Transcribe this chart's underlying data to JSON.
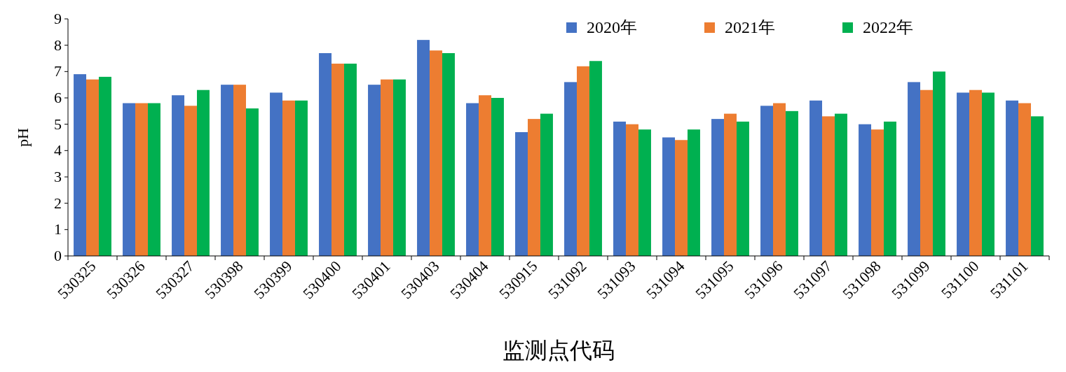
{
  "chart_data": {
    "type": "bar",
    "xlabel": "监测点代码",
    "ylabel": "pH",
    "categories": [
      "530325",
      "530326",
      "530327",
      "530398",
      "530399",
      "530400",
      "530401",
      "530403",
      "530404",
      "530915",
      "531092",
      "531093",
      "531094",
      "531095",
      "531096",
      "531097",
      "531098",
      "531099",
      "531100",
      "531101"
    ],
    "series": [
      {
        "name": "2020年",
        "color": "#4472c4",
        "values": [
          6.9,
          5.8,
          6.1,
          6.5,
          6.2,
          7.7,
          6.5,
          8.2,
          5.8,
          4.7,
          6.6,
          5.1,
          4.5,
          5.2,
          5.7,
          5.9,
          5.0,
          6.6,
          6.2,
          5.9
        ]
      },
      {
        "name": "2021年",
        "color": "#ed7d31",
        "values": [
          6.7,
          5.8,
          5.7,
          6.5,
          5.9,
          7.3,
          6.7,
          7.8,
          6.1,
          5.2,
          7.2,
          5.0,
          4.4,
          5.4,
          5.8,
          5.3,
          4.8,
          6.3,
          6.3,
          5.8
        ]
      },
      {
        "name": "2022年",
        "color": "#00b050",
        "values": [
          6.8,
          5.8,
          6.3,
          5.6,
          5.9,
          7.3,
          6.7,
          7.7,
          6.0,
          5.4,
          7.4,
          4.8,
          4.8,
          5.1,
          5.5,
          5.4,
          5.1,
          7.0,
          6.2,
          5.3
        ]
      }
    ],
    "ylim": [
      0,
      9
    ],
    "yticks": [
      0,
      1,
      2,
      3,
      4,
      5,
      6,
      7,
      8,
      9
    ],
    "grid": false,
    "legend": "top right"
  }
}
